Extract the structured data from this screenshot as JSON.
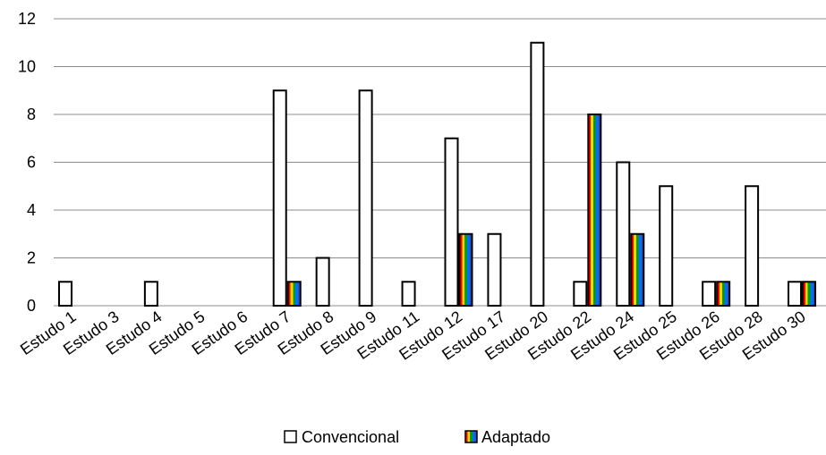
{
  "chart_data": {
    "type": "bar",
    "categories": [
      "Estudo 1",
      "Estudo 3",
      "Estudo 4",
      "Estudo 5",
      "Estudo 6",
      "Estudo 7",
      "Estudo 8",
      "Estudo 9",
      "Estudo 11",
      "Estudo 12",
      "Estudo 17",
      "Estudo 20",
      "Estudo 22",
      "Estudo 24",
      "Estudo 25",
      "Estudo 26",
      "Estudo 28",
      "Estudo 30"
    ],
    "series": [
      {
        "name": "Convencional",
        "values": [
          1,
          0,
          1,
          0,
          0,
          9,
          2,
          9,
          1,
          7,
          3,
          11,
          1,
          6,
          5,
          1,
          5,
          1
        ]
      },
      {
        "name": "Adaptado",
        "values": [
          0,
          0,
          0,
          0,
          0,
          1,
          0,
          0,
          0,
          3,
          0,
          0,
          8,
          3,
          0,
          1,
          0,
          1
        ]
      }
    ],
    "ylim": [
      0,
      12
    ],
    "yticks": [
      0,
      2,
      4,
      6,
      8,
      10,
      12
    ],
    "grid": true,
    "legend_position": "bottom-center",
    "colors": {
      "convencional_fill": "#ffffff",
      "bar_stroke": "#000000",
      "gridline": "#8c8c8c",
      "stripes": [
        "#ff0000",
        "#ffd200",
        "#00a000",
        "#0070ff",
        "#3050c0"
      ]
    }
  }
}
